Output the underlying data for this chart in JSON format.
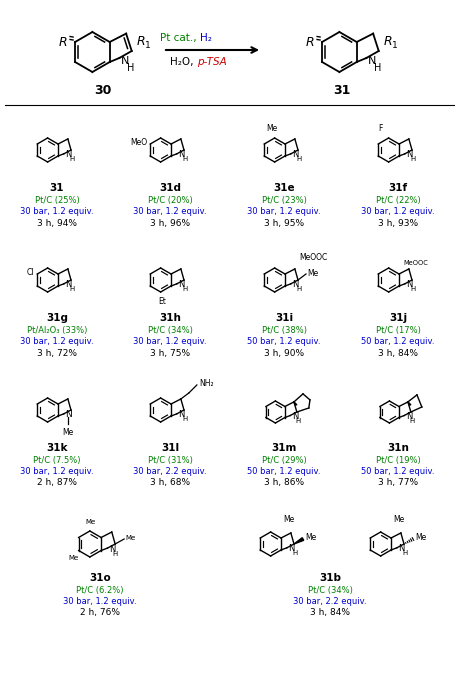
{
  "fig_width": 4.59,
  "fig_height": 6.91,
  "dpi": 100,
  "green": "#008000",
  "blue": "#0000CC",
  "red": "#CC0000",
  "black": "#000000",
  "compounds": [
    {
      "id": "31",
      "cat": "Pt/C (25%)",
      "cond": "30 bar, 1.2 equiv.",
      "result": "3 h, 94%",
      "row": 0,
      "col": 0
    },
    {
      "id": "31d",
      "cat": "Pt/C (20%)",
      "cond": "30 bar, 1.2 equiv.",
      "result": "3 h, 96%",
      "row": 0,
      "col": 1
    },
    {
      "id": "31e",
      "cat": "Pt/C (23%)",
      "cond": "30 bar, 1.2 equiv.",
      "result": "3 h, 95%",
      "row": 0,
      "col": 2
    },
    {
      "id": "31f",
      "cat": "Pt/C (22%)",
      "cond": "30 bar, 1.2 equiv.",
      "result": "3 h, 93%",
      "row": 0,
      "col": 3
    },
    {
      "id": "31g",
      "cat": "Pt/Al₂O₃ (33%)",
      "cond": "30 bar, 1.2 equiv.",
      "result": "3 h, 72%",
      "row": 1,
      "col": 0
    },
    {
      "id": "31h",
      "cat": "Pt/C (34%)",
      "cond": "30 bar, 1.2 equiv.",
      "result": "3 h, 75%",
      "row": 1,
      "col": 1
    },
    {
      "id": "31i",
      "cat": "Pt/C (38%)",
      "cond": "50 bar, 1.2 equiv.",
      "result": "3 h, 90%",
      "row": 1,
      "col": 2
    },
    {
      "id": "31j",
      "cat": "Pt/C (17%)",
      "cond": "50 bar, 1.2 equiv.",
      "result": "3 h, 84%",
      "row": 1,
      "col": 3
    },
    {
      "id": "31k",
      "cat": "Pt/C (7.5%)",
      "cond": "30 bar, 1.2 equiv.",
      "result": "2 h, 87%",
      "row": 2,
      "col": 0
    },
    {
      "id": "31l",
      "cat": "Pt/C (31%)",
      "cond": "30 bar, 2.2 equiv.",
      "result": "3 h, 68%",
      "row": 2,
      "col": 1
    },
    {
      "id": "31m",
      "cat": "Pt/C (29%)",
      "cond": "50 bar, 1.2 equiv.",
      "result": "3 h, 86%",
      "row": 2,
      "col": 2
    },
    {
      "id": "31n",
      "cat": "Pt/C (19%)",
      "cond": "50 bar, 1.2 equiv.",
      "result": "3 h, 77%",
      "row": 2,
      "col": 3
    },
    {
      "id": "31o",
      "cat": "Pt/C (6.2%)",
      "cond": "30 bar, 1.2 equiv.",
      "result": "2 h, 76%",
      "row": 3,
      "col": 0
    },
    {
      "id": "31b",
      "cat": "Pt/C (34%)",
      "cond": "30 bar, 2.2 equiv.",
      "result": "3 h, 84%",
      "row": 3,
      "col": 1
    }
  ]
}
